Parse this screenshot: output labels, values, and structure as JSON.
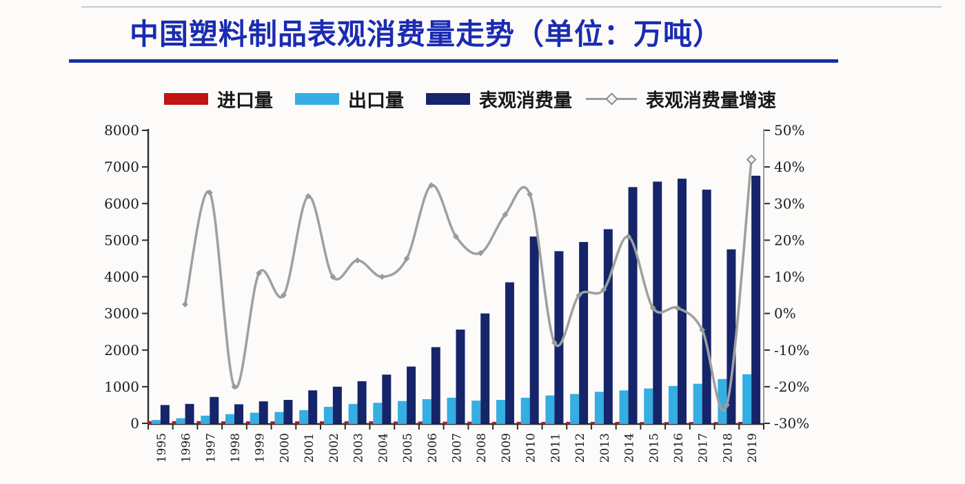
{
  "page": {
    "title": "中国塑料制品表观消费量走势（单位：万吨）"
  },
  "legend": [
    {
      "label": "进口量",
      "color": "#c11414",
      "type": "bar"
    },
    {
      "label": "出口量",
      "color": "#35aee3",
      "type": "bar"
    },
    {
      "label": "表观消费量",
      "color": "#162569",
      "type": "bar"
    },
    {
      "label": "表观消费量增速",
      "color": "#9c9c9c",
      "type": "line"
    }
  ],
  "styles": {
    "title_color": "#1b2bb2",
    "underline_color": "#16309e",
    "axis_color": "#2b2b2b",
    "label_color": "#1b1b1b",
    "line_color": "#a0a0a0",
    "background": "#fcfbfa"
  },
  "chart_data": {
    "type": "bar",
    "title": "中国塑料制品表观消费量走势（单位：万吨）",
    "categories": [
      "1995",
      "1996",
      "1997",
      "1998",
      "1999",
      "2000",
      "2001",
      "2002",
      "2003",
      "2004",
      "2005",
      "2006",
      "2007",
      "2008",
      "2009",
      "2010",
      "2011",
      "2012",
      "2013",
      "2014",
      "2015",
      "2016",
      "2017",
      "2018",
      "2019"
    ],
    "series": [
      {
        "name": "进口量",
        "type": "bar",
        "axis": "left",
        "color": "#c11414",
        "values": [
          60,
          60,
          60,
          55,
          55,
          55,
          55,
          55,
          55,
          55,
          50,
          50,
          45,
          45,
          40,
          40,
          40,
          40,
          40,
          40,
          35,
          35,
          35,
          35,
          40
        ]
      },
      {
        "name": "出口量",
        "type": "bar",
        "axis": "left",
        "color": "#35aee3",
        "values": [
          90,
          140,
          210,
          250,
          290,
          310,
          360,
          450,
          530,
          560,
          610,
          660,
          700,
          620,
          640,
          700,
          760,
          800,
          860,
          900,
          950,
          1020,
          1080,
          1210,
          1340
        ]
      },
      {
        "name": "表观消费量",
        "type": "bar",
        "axis": "left",
        "color": "#162569",
        "values": [
          500,
          530,
          720,
          520,
          600,
          640,
          900,
          1000,
          1150,
          1330,
          1550,
          2080,
          2560,
          3000,
          3850,
          5100,
          4700,
          4950,
          5300,
          6450,
          6600,
          6680,
          6380,
          4750,
          6760
        ]
      },
      {
        "name": "表观消费量增速",
        "type": "line",
        "axis": "right",
        "unit": "%",
        "color": "#a0a0a0",
        "values": [
          null,
          2.5,
          33,
          -20,
          11,
          5,
          32,
          10,
          14.5,
          10,
          15,
          35,
          21,
          16.5,
          27,
          32.5,
          -8,
          5,
          6.5,
          21,
          1.5,
          1.5,
          -4.5,
          -25,
          42
        ]
      }
    ],
    "left_axis": {
      "min": 0,
      "max": 8000,
      "step": 1000,
      "ticks": [
        "0",
        "1000",
        "2000",
        "3000",
        "4000",
        "5000",
        "6000",
        "7000",
        "8000"
      ]
    },
    "right_axis": {
      "min": -30,
      "max": 50,
      "step": 10,
      "ticks": [
        "-30%",
        "-20%",
        "-10%",
        "0%",
        "10%",
        "20%",
        "30%",
        "40%",
        "50%"
      ]
    },
    "grid": false,
    "legend_position": "top"
  }
}
